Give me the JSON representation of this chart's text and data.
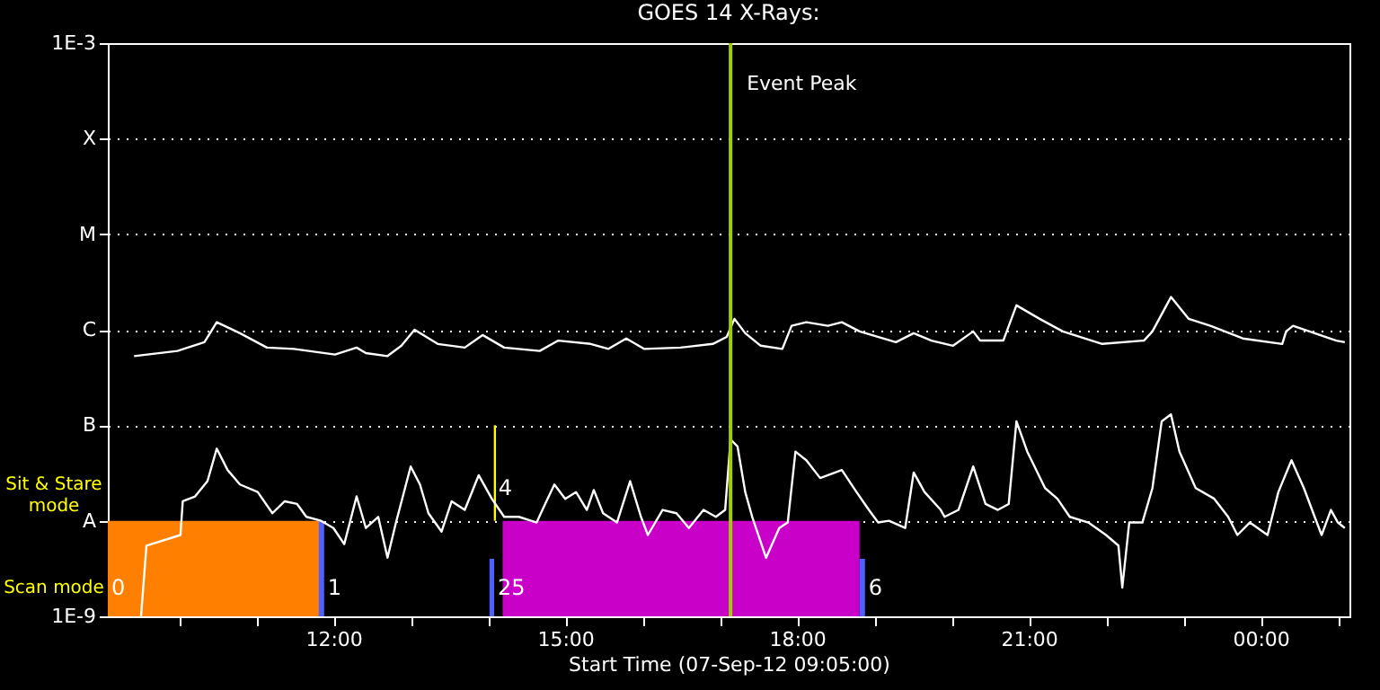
{
  "chart_data": {
    "type": "line",
    "title": "GOES 14 X-Rays:",
    "xlabel": "Start Time (07-Sep-12 09:05:00)",
    "xlim": [
      9.08,
      25.15
    ],
    "xticks": [
      {
        "value": 10,
        "label": null
      },
      {
        "value": 11,
        "label": null
      },
      {
        "value": 12,
        "label": "12:00"
      },
      {
        "value": 13,
        "label": null
      },
      {
        "value": 14,
        "label": null
      },
      {
        "value": 15,
        "label": "15:00"
      },
      {
        "value": 16,
        "label": null
      },
      {
        "value": 17,
        "label": null
      },
      {
        "value": 18,
        "label": "18:00"
      },
      {
        "value": 19,
        "label": null
      },
      {
        "value": 20,
        "label": null
      },
      {
        "value": 21,
        "label": "21:00"
      },
      {
        "value": 22,
        "label": null
      },
      {
        "value": 23,
        "label": null
      },
      {
        "value": 24,
        "label": "00:00"
      },
      {
        "value": 25,
        "label": null
      }
    ],
    "ylim": [
      1e-09,
      0.001
    ],
    "yticks": [
      {
        "value": 1e-09,
        "label": "1E-9"
      },
      {
        "value": 1e-08,
        "label": "A"
      },
      {
        "value": 1e-07,
        "label": "B"
      },
      {
        "value": 1e-06,
        "label": "C"
      },
      {
        "value": 1e-05,
        "label": "M"
      },
      {
        "value": 0.0001,
        "label": "X"
      },
      {
        "value": 0.001,
        "label": "1E-3"
      }
    ],
    "log": "y",
    "grid": "y",
    "series": [
      {
        "type": "area",
        "color": "#ff8000",
        "x": [
          9.08,
          11.84
        ],
        "values": [
          1e-08,
          1e-08
        ]
      },
      {
        "type": "area",
        "color": "#c800c8",
        "x": [
          14.19,
          18.81
        ],
        "values": [
          1e-08,
          1e-08
        ]
      },
      {
        "type": "area",
        "color": "#5060ff",
        "x": [
          11.81,
          11.88
        ],
        "values": [
          1e-08,
          1e-08
        ]
      },
      {
        "type": "area",
        "color": "#5060ff",
        "x": [
          14.02,
          14.08
        ],
        "values": [
          4e-09,
          4e-09
        ]
      },
      {
        "type": "area",
        "color": "#5060ff",
        "x": [
          18.81,
          18.88
        ],
        "values": [
          4e-09,
          4e-09
        ]
      },
      {
        "color": "#ffff00",
        "x": [
          14.09,
          14.09
        ],
        "values": [
          1e-08,
          1e-07
        ]
      },
      {
        "color": "#ffffff",
        "x": [
          9.42,
          9.98,
          10.33,
          10.49,
          10.79,
          11.14,
          11.49,
          12.02,
          12.3,
          12.42,
          12.7,
          12.88,
          13.05,
          13.35,
          13.7,
          13.93,
          14.21,
          14.67,
          14.91,
          15.33,
          15.56,
          15.79,
          16.02,
          16.49,
          16.91,
          17.09,
          17.19,
          17.33,
          17.53,
          17.81,
          17.93,
          18.12,
          18.4,
          18.58,
          18.81,
          19.28,
          19.51,
          19.74,
          20.02,
          20.28,
          20.37,
          20.67,
          20.84,
          21.14,
          21.44,
          21.95,
          22.49,
          22.6,
          22.84,
          23.07,
          23.35,
          23.77,
          24.28,
          24.33,
          24.42,
          24.7,
          24.98,
          25.09
        ],
        "values": [
          5.3e-07,
          6e-07,
          7.4e-07,
          1.2e-06,
          9.2e-07,
          6.5e-07,
          6.3e-07,
          5.5e-07,
          6.5e-07,
          5.7e-07,
          5.3e-07,
          6.8e-07,
          1e-06,
          7.1e-07,
          6.5e-07,
          8.8e-07,
          6.5e-07,
          6e-07,
          7.7e-07,
          7.1e-07,
          6.3e-07,
          8.1e-07,
          6.3e-07,
          6.5e-07,
          7.1e-07,
          8.4e-07,
          1.3e-06,
          9.2e-07,
          6.8e-07,
          6.3e-07,
          1.1e-06,
          1.2e-06,
          1.1e-06,
          1.2e-06,
          9.6e-07,
          7.4e-07,
          9.2e-07,
          7.7e-07,
          6.8e-07,
          9.6e-07,
          7.7e-07,
          7.7e-07,
          1.8e-06,
          1.3e-06,
          9.6e-07,
          7.1e-07,
          7.7e-07,
          9.6e-07,
          2.2e-06,
          1.3e-06,
          1.1e-06,
          8.1e-07,
          7.1e-07,
          9.6e-07,
          1.1e-06,
          9.2e-07,
          7.7e-07,
          7.4e-07
        ]
      },
      {
        "color": "#ffffff",
        "x": [
          9.51,
          9.58,
          10.02,
          10.05,
          10.21,
          10.37,
          10.49,
          10.63,
          10.79,
          11.02,
          11.21,
          11.37,
          11.53,
          11.65,
          11.84,
          12.0,
          12.14,
          12.3,
          12.42,
          12.58,
          12.7,
          12.81,
          13.0,
          13.12,
          13.23,
          13.4,
          13.53,
          13.7,
          13.88,
          14.05,
          14.21,
          14.4,
          14.63,
          14.74,
          14.86,
          15.0,
          15.14,
          15.28,
          15.37,
          15.49,
          15.67,
          15.84,
          15.98,
          16.07,
          16.26,
          16.44,
          16.6,
          16.79,
          16.95,
          17.07,
          17.14,
          17.23,
          17.33,
          17.42,
          17.6,
          17.77,
          17.88,
          17.98,
          18.12,
          18.3,
          18.58,
          18.77,
          18.93,
          19.05,
          19.19,
          19.4,
          19.51,
          19.65,
          19.86,
          19.91,
          20.09,
          20.28,
          20.44,
          20.6,
          20.74,
          20.84,
          20.98,
          21.21,
          21.37,
          21.53,
          21.77,
          22.0,
          22.16,
          22.21,
          22.3,
          22.47,
          22.6,
          22.72,
          22.84,
          22.95,
          23.16,
          23.4,
          23.58,
          23.7,
          23.86,
          24.09,
          24.23,
          24.4,
          24.56,
          24.7,
          24.79,
          24.91,
          25.0,
          25.09
        ],
        "values": [
          1e-09,
          5.5e-09,
          7.1e-09,
          1.6e-08,
          1.8e-08,
          2.6e-08,
          5.7e-08,
          3.4e-08,
          2.4e-08,
          2e-08,
          1.2e-08,
          1.6e-08,
          1.5e-08,
          1.1e-08,
          1e-08,
          8.4e-09,
          5.7e-09,
          1.8e-08,
          8.4e-09,
          1.1e-08,
          4.1e-09,
          9.6e-09,
          3.7e-08,
          2.4e-08,
          1.2e-08,
          7.7e-09,
          1.6e-08,
          1.3e-08,
          3e-08,
          1.7e-08,
          1.1e-08,
          1.1e-08,
          9.6e-09,
          1.5e-08,
          2.4e-08,
          1.7e-08,
          2e-08,
          1.3e-08,
          2.1e-08,
          1.2e-08,
          9.6e-09,
          2.6e-08,
          1.1e-08,
          7.1e-09,
          1.3e-08,
          1.2e-08,
          8.4e-09,
          1.3e-08,
          1.1e-08,
          1.3e-08,
          7.1e-08,
          6e-08,
          2e-08,
          1.1e-08,
          4.1e-09,
          8.4e-09,
          9.6e-09,
          5.3e-08,
          4.3e-08,
          2.8e-08,
          3.4e-08,
          2e-08,
          1.3e-08,
          9.6e-09,
          1e-08,
          8.4e-09,
          3.2e-08,
          2e-08,
          1.3e-08,
          1.1e-08,
          1.3e-08,
          3.7e-08,
          1.5e-08,
          1.3e-08,
          1.5e-08,
          1.1e-07,
          5.3e-08,
          2.2e-08,
          1.7e-08,
          1.1e-08,
          9.6e-09,
          7.1e-09,
          5.5e-09,
          2e-09,
          9.6e-09,
          9.6e-09,
          2.2e-08,
          1.1e-07,
          1.3e-07,
          5.3e-08,
          2.2e-08,
          1.7e-08,
          1.1e-08,
          7.1e-09,
          9.6e-09,
          7.1e-09,
          2e-08,
          4.3e-08,
          2.2e-08,
          1.1e-08,
          7.1e-09,
          1.3e-08,
          9.6e-09,
          8.4e-09
        ]
      }
    ],
    "ref_lines": [
      {
        "axis": "x",
        "value": 17.14,
        "label": "Event Peak",
        "color": "#a0d000"
      }
    ],
    "annotations": [
      "Sit & Stare\nmode",
      "Scan mode",
      {
        "text": "0",
        "x": 9.08,
        "y": 2e-09
      },
      {
        "text": "1",
        "x": 11.88,
        "y": 2e-09
      },
      {
        "text": "25",
        "x": 14.08,
        "y": 2e-09
      },
      {
        "text": "4",
        "x": 14.09,
        "y": 2.2e-08
      },
      {
        "text": "6",
        "x": 18.88,
        "y": 2e-09
      }
    ]
  }
}
